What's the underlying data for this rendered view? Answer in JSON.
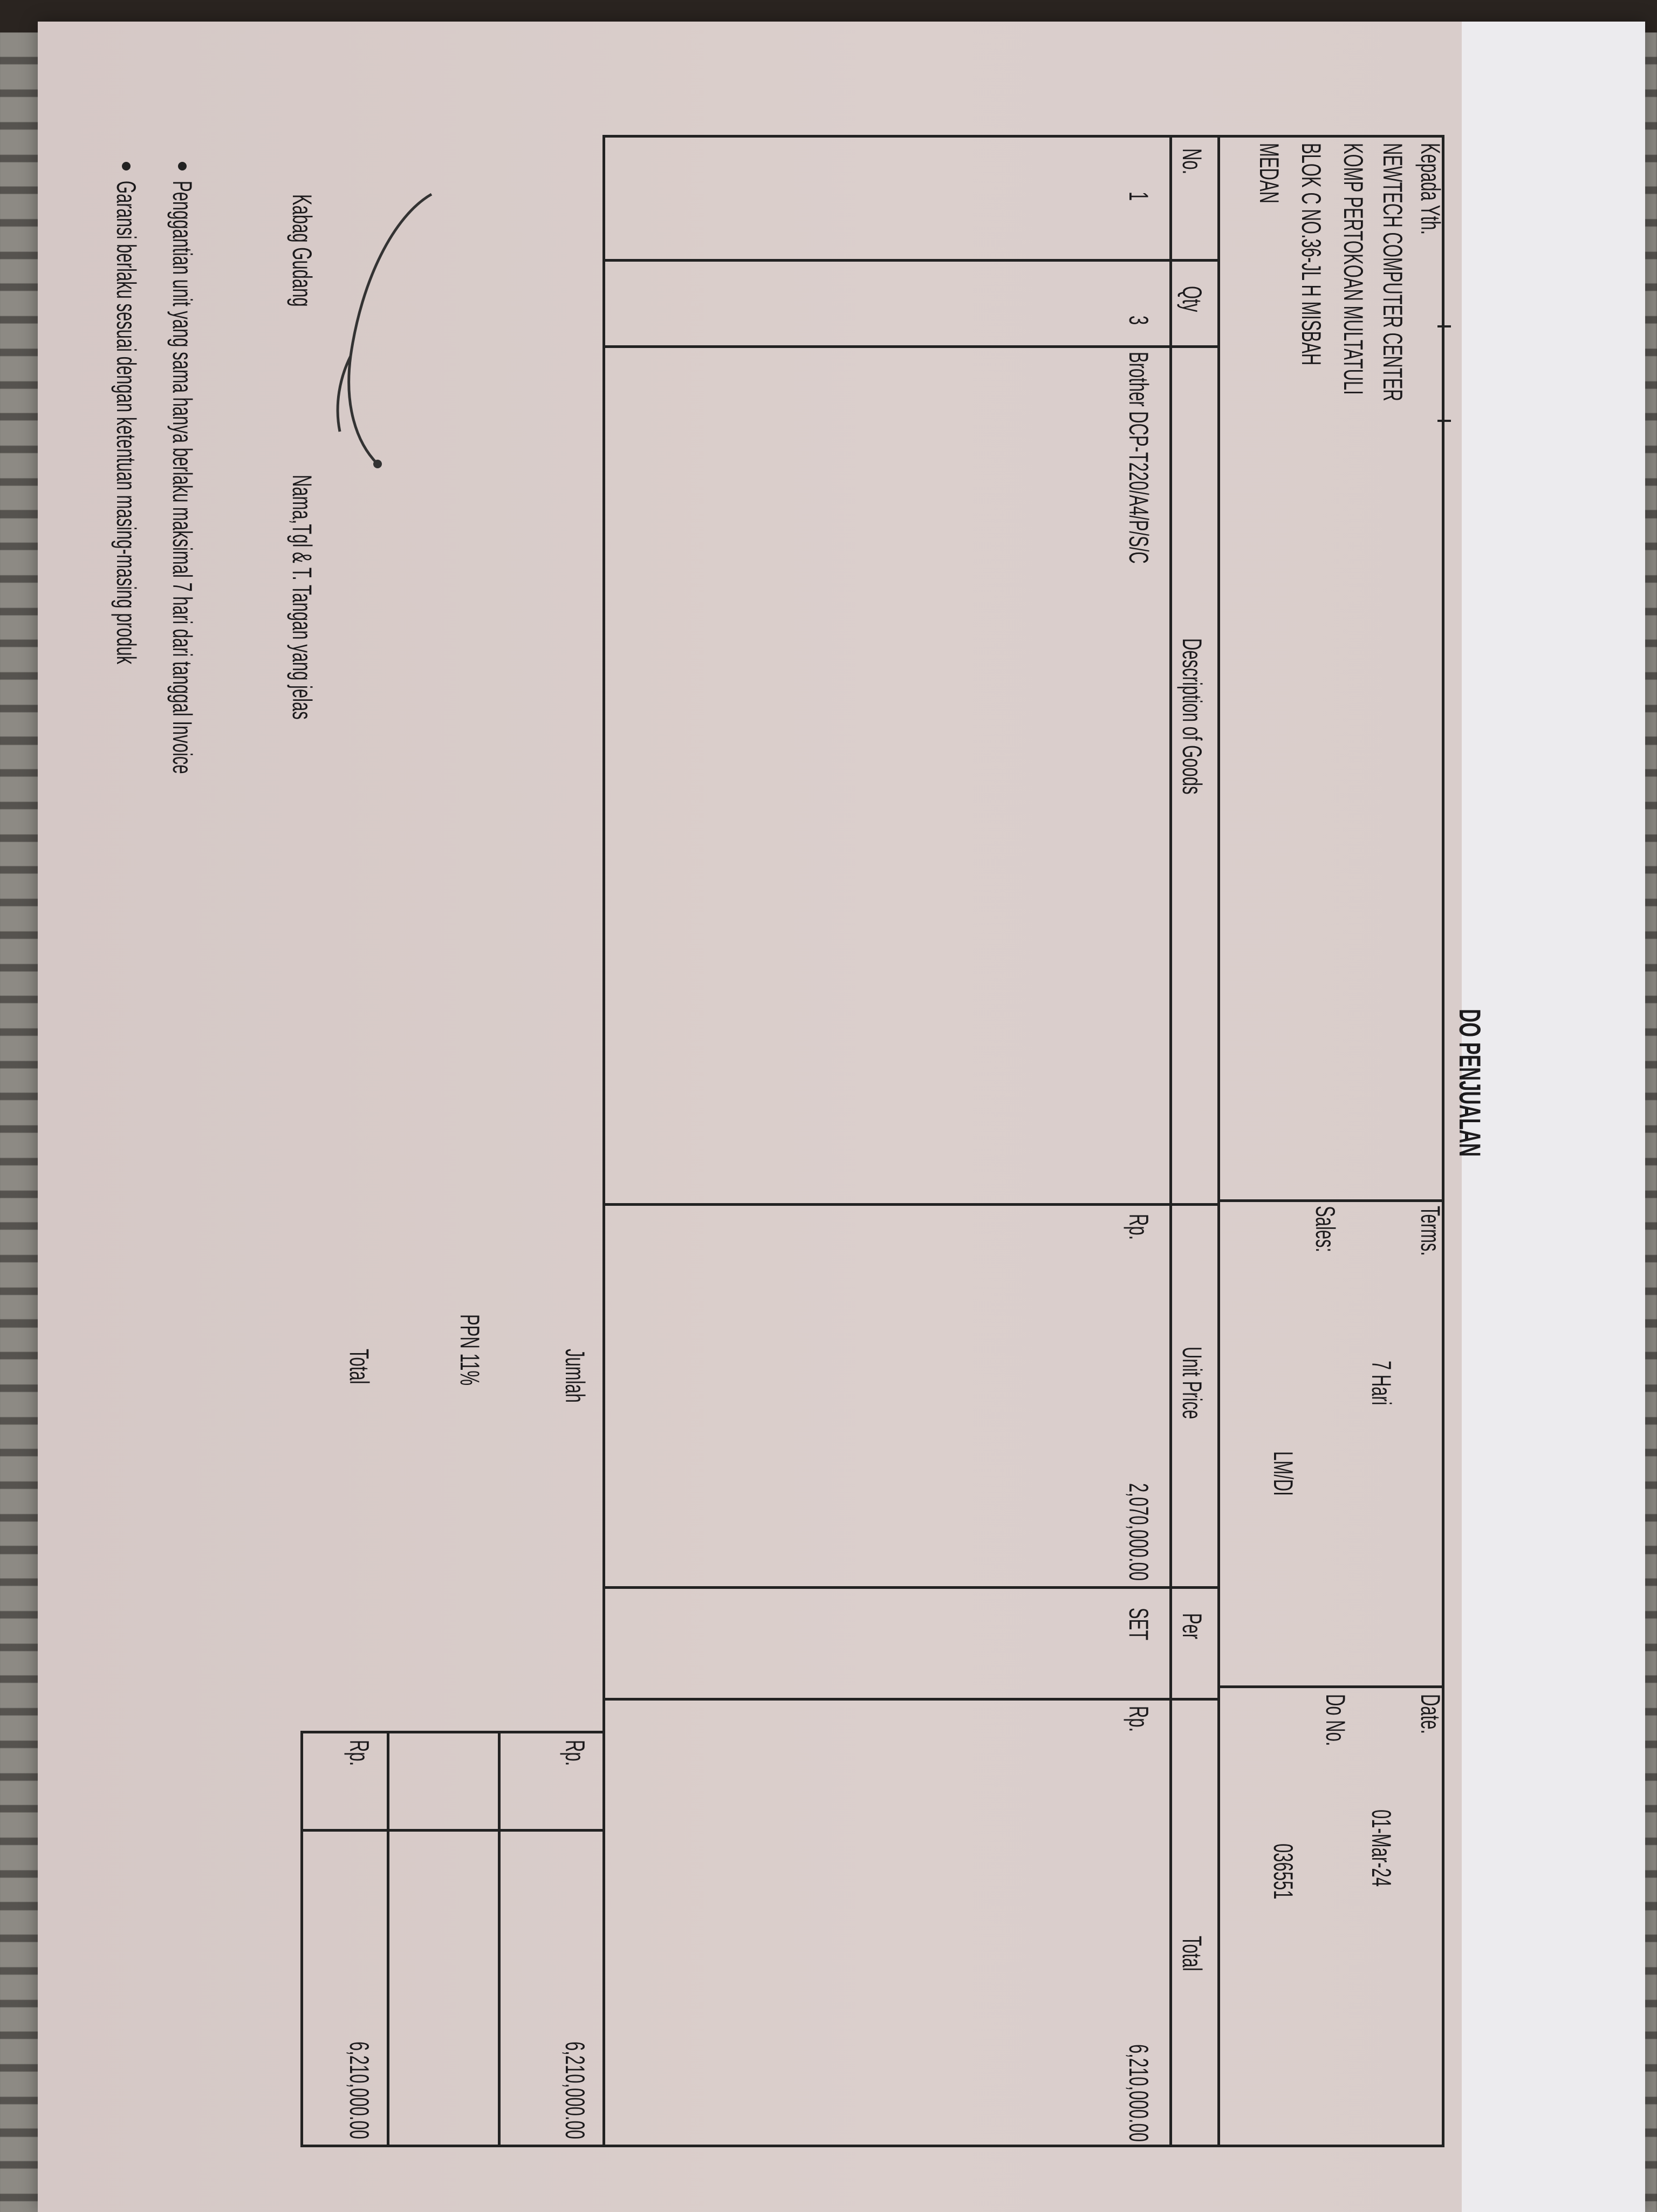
{
  "document": {
    "title": "DO PENJUALAN",
    "recipient": {
      "label": "Kepada Yth.",
      "lines": [
        "NEWTECH COMPUTER CENTER",
        "KOMP PERTOKOAN MULTATULI",
        "BLOK C NO.36-JL H MISBAH",
        "MEDAN"
      ]
    },
    "terms": {
      "label": "Terms.",
      "value": "7 Hari"
    },
    "sales": {
      "label": "Sales:",
      "value": "LM/DI"
    },
    "date": {
      "label": "Date.",
      "value": "01-Mar-24"
    },
    "do_no": {
      "label": "Do No.",
      "value": "036551"
    },
    "table": {
      "headers": [
        "No.",
        "Qty",
        "Description of Goods",
        "Unit Price",
        "Per",
        "Total"
      ],
      "rows": [
        {
          "no": "1",
          "qty": "3",
          "description": "Brother DCP-T220/A4/P/S/C",
          "currency": "Rp.",
          "unit_price": "2,070,000.00",
          "per": "SET",
          "total_currency": "Rp.",
          "total": "6,210,000.00"
        }
      ]
    },
    "summary": {
      "jumlah": {
        "label": "Jumlah",
        "currency": "Rp.",
        "value": "6,210,000.00"
      },
      "ppn": {
        "label": "PPN 11%"
      },
      "total": {
        "label": "Total",
        "currency": "Rp.",
        "value": "6,210,000.00"
      }
    },
    "signature": {
      "role": "Kabag Gudang",
      "instruction": "Nama,Tgl & T. Tangan yang jelas"
    },
    "notes": [
      "Penggantian unit yang sama hanya berlaku maksimal 7 hari dari tanggal Invoice",
      "Garansi berlaku sesuai dengan ketentuan masing-masing produk"
    ]
  }
}
